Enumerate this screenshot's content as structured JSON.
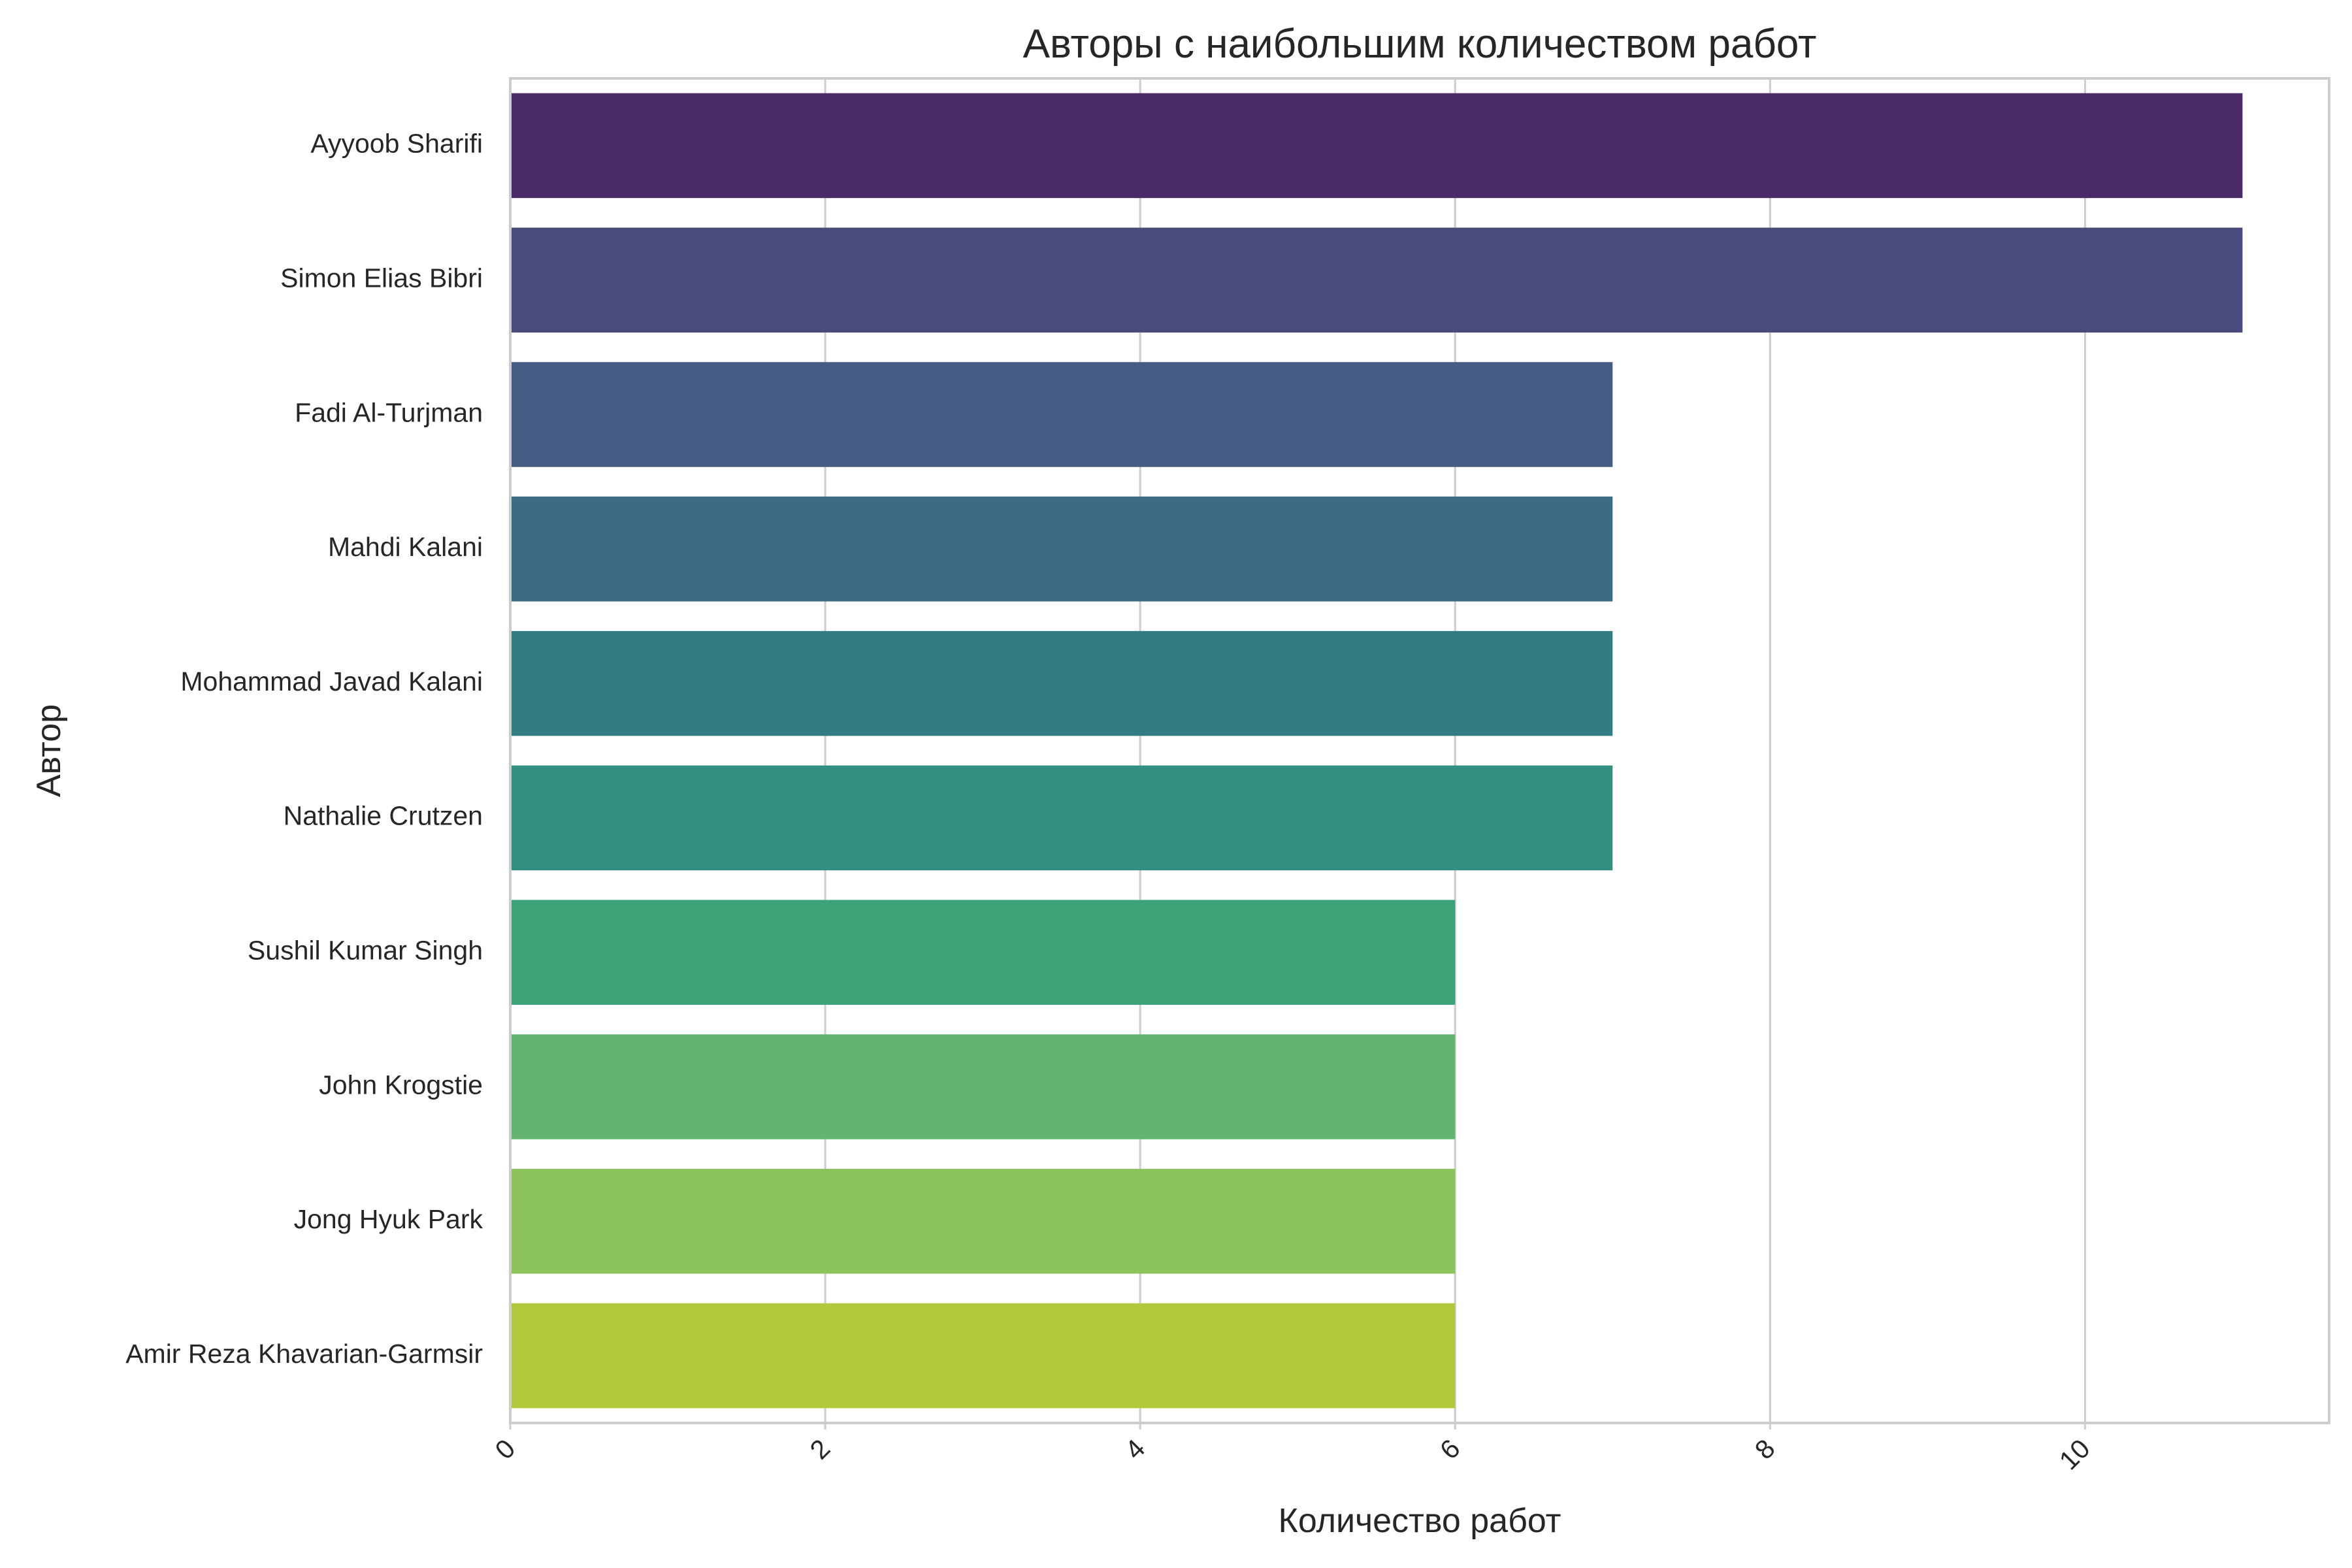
{
  "chart_data": {
    "type": "bar",
    "orientation": "horizontal",
    "title": "Авторы с наибольшим количеством работ",
    "xlabel": "Количество работ",
    "ylabel": "Автор",
    "xlim": [
      0,
      11.55
    ],
    "xticks": [
      0,
      2,
      4,
      6,
      8,
      10
    ],
    "grid": true,
    "categories": [
      "Ayyoob Sharifi",
      "Simon Elias Bibri",
      "Fadi Al-Turjman",
      "Mahdi Kalani",
      "Mohammad Javad Kalani",
      "Nathalie Crutzen",
      "Sushil Kumar Singh",
      "John Krogstie",
      "Jong Hyuk Park",
      "Amir Reza Khavarian-Garmsir"
    ],
    "values": [
      11,
      11,
      7,
      7,
      7,
      7,
      6,
      6,
      6,
      6
    ],
    "colors": [
      "#4b2a68",
      "#4b4a7e",
      "#455d84",
      "#3b6c83",
      "#337c82",
      "#31907f",
      "#3ba377",
      "#62b46f",
      "#8cc45b",
      "#b1c93a"
    ]
  }
}
